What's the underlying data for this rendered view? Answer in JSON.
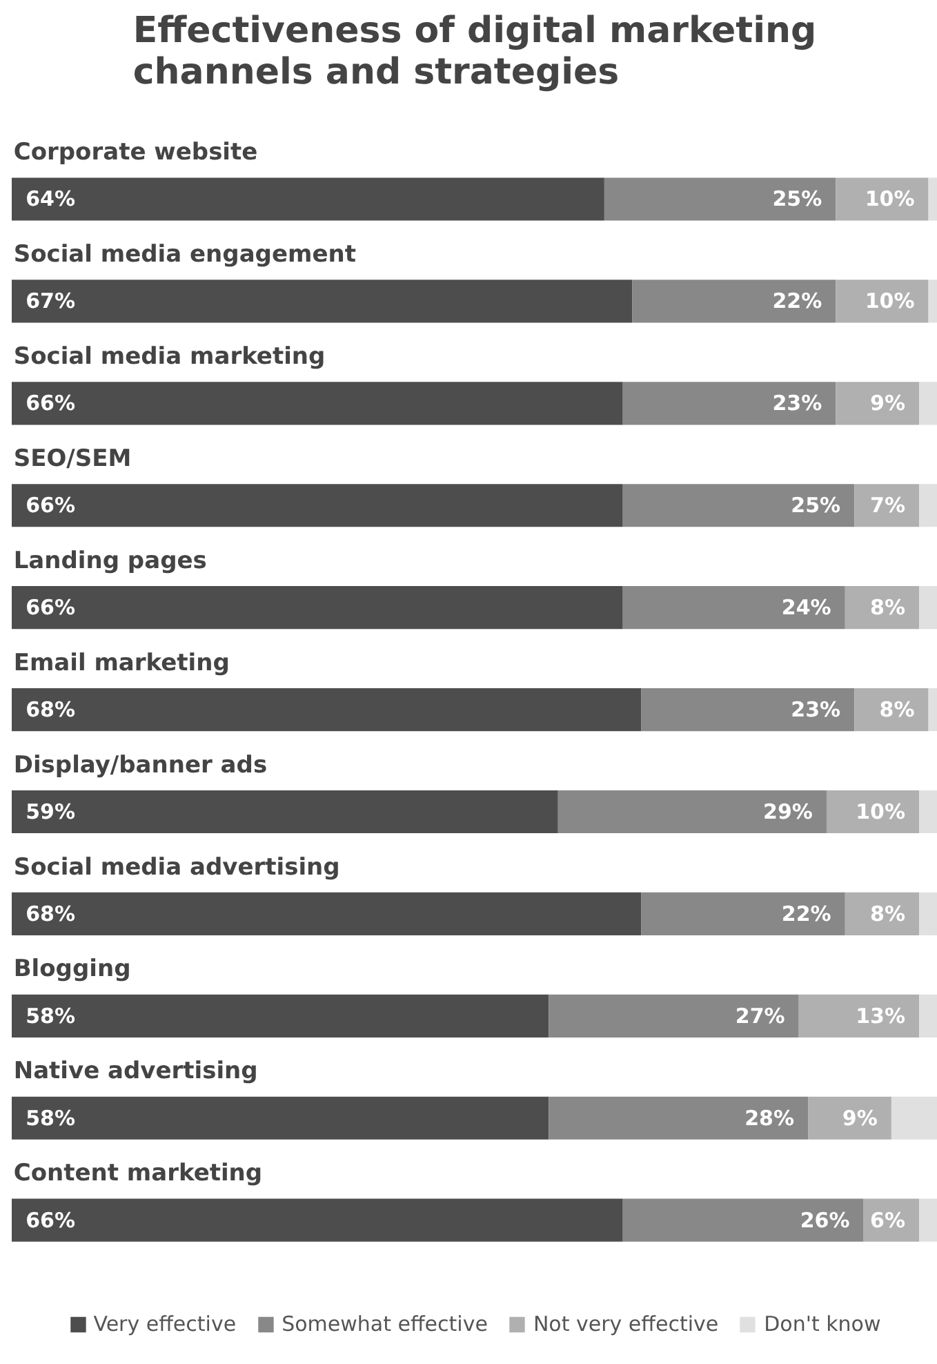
{
  "chart_data": {
    "type": "bar",
    "title": "Effectiveness of digital marketing channels and strategies",
    "orientation": "horizontal",
    "stacked": true,
    "categories": [
      "Corporate website",
      "Social media engagement",
      "Social media marketing",
      "SEO/SEM",
      "Landing pages",
      "Email marketing",
      "Display/banner ads",
      "Social media advertising",
      "Blogging",
      "Native advertising",
      "Content marketing"
    ],
    "series": [
      {
        "name": "Very effective",
        "color": "#4d4d4d",
        "values": [
          64,
          67,
          66,
          66,
          66,
          68,
          59,
          68,
          58,
          58,
          66
        ],
        "value_labels": [
          "64%",
          "67%",
          "66%",
          "66%",
          "66%",
          "68%",
          "59%",
          "68%",
          "58%",
          "58%",
          "66%"
        ]
      },
      {
        "name": "Somewhat effective",
        "color": "#888888",
        "values": [
          25,
          22,
          23,
          25,
          24,
          23,
          29,
          22,
          27,
          28,
          26
        ],
        "value_labels": [
          "25%",
          "22%",
          "23%",
          "25%",
          "24%",
          "23%",
          "29%",
          "22%",
          "27%",
          "28%",
          "26%"
        ]
      },
      {
        "name": "Not very effective",
        "color": "#b0b0b0",
        "values": [
          10,
          10,
          9,
          7,
          8,
          8,
          10,
          8,
          13,
          9,
          6
        ],
        "value_labels": [
          "10%",
          "10%",
          "9%",
          "7%",
          "8%",
          "8%",
          "10%",
          "8%",
          "13%",
          "9%",
          "6%"
        ]
      },
      {
        "name": "Don't know",
        "color": "#e0e0e0",
        "values": [
          1,
          1,
          2,
          2,
          2,
          1,
          2,
          2,
          2,
          5,
          2
        ]
      }
    ],
    "xlim": [
      0,
      100
    ],
    "tick_labels": false,
    "grid": false,
    "legend": "bottom"
  }
}
